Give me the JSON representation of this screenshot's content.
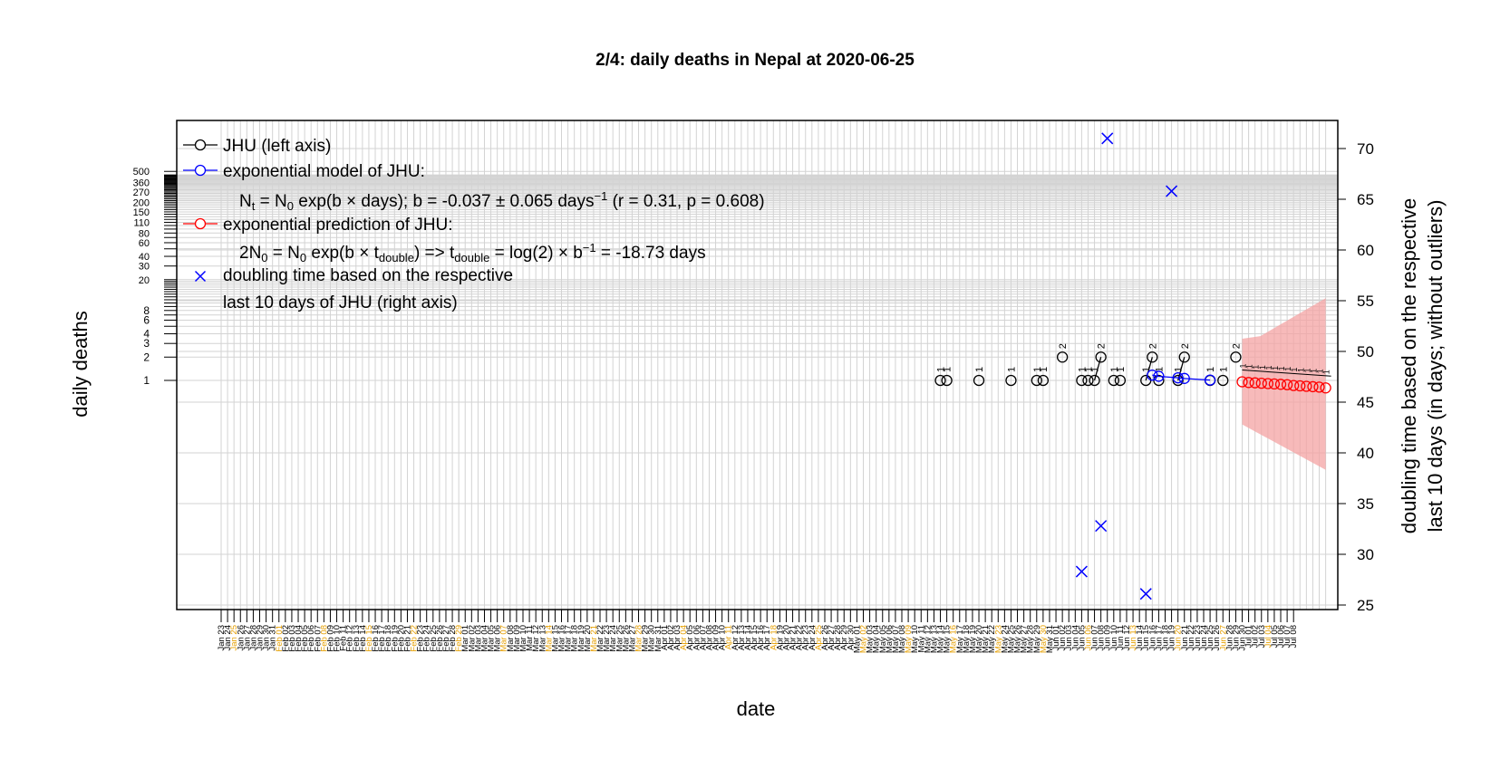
{
  "chart_data": {
    "type": "line",
    "title": "2/4: daily deaths in Nepal at 2020-06-25",
    "xlabel": "date",
    "ylabel": "daily deaths",
    "ylabel_right_line1": "doubling time based on the respective",
    "ylabel_right_line2": "last 10 days (in days; without outliers)",
    "y_left_scale": "log",
    "y_left_ticks": [
      1,
      2,
      3,
      4,
      6,
      8,
      20,
      30,
      40,
      60,
      80,
      110,
      150,
      200,
      270,
      360,
      500
    ],
    "y_left_minor_ticks": [
      5,
      7,
      9,
      10,
      11,
      12,
      13,
      14,
      15,
      16,
      17,
      18,
      19,
      50,
      70,
      90,
      100,
      120,
      130,
      140,
      160,
      170,
      180,
      190,
      210,
      220,
      230,
      240,
      250,
      260,
      280,
      290,
      300,
      310,
      320,
      330,
      340,
      350,
      370,
      380,
      390,
      400,
      410,
      420,
      430,
      440,
      450
    ],
    "y_right_ticks": [
      25,
      30,
      35,
      40,
      45,
      50,
      55,
      60,
      65,
      70
    ],
    "y_right_lim": [
      24.5,
      72.5
    ],
    "x_start": "2020-01-23",
    "x_end": "2020-07-08",
    "x_label_style": "Mon DD",
    "x_highlight_color": "#e69f00",
    "x_highlight_labels": [
      "Jan 25",
      "Feb 01",
      "Feb 08",
      "Feb 15",
      "Feb 22",
      "Feb 29",
      "Mar 07",
      "Mar 14",
      "Mar 21",
      "Mar 28",
      "Apr 04",
      "Apr 11",
      "Apr 18",
      "Apr 25",
      "May 02",
      "May 09",
      "May 16",
      "May 23",
      "May 30",
      "Jun 06",
      "Jun 13",
      "Jun 20",
      "Jun 27",
      "Jul 04"
    ],
    "grid": true,
    "legend_position": "top-left",
    "legend": {
      "jhu": "JHU (left axis)",
      "model": "exponential model of JHU:",
      "model_eq_a": "N",
      "model_eq_a_sub": "t",
      "model_eq_b": " = N",
      "model_eq_b_sub": "0",
      "model_eq_c": " exp(b × days); b = -0.037 ± 0.065 days",
      "model_eq_c_sup": "−1",
      "model_eq_d": " (r = 0.31, p = 0.608)",
      "prediction": "exponential prediction of JHU:",
      "pred_eq_a": "2N",
      "pred_eq_a_sub": "0",
      "pred_eq_b": " = N",
      "pred_eq_b_sub": "0",
      "pred_eq_c": " exp(b × t",
      "pred_eq_c_sub": "double",
      "pred_eq_d": ") => t",
      "pred_eq_d_sub": "double",
      "pred_eq_e": " = log(2) × b",
      "pred_eq_e_sup": "−1",
      "pred_eq_f": " = -18.73 days",
      "doubling_line1": "doubling time based on the respective",
      "doubling_line2": "last 10 days of JHU (right axis)"
    },
    "colors": {
      "jhu": "#000000",
      "model": "#0000ff",
      "prediction": "#ff0000",
      "band": "#f4a3a3",
      "doubling": "#0000ff",
      "grid": "#d3d3d3"
    },
    "series": [
      {
        "name": "JHU (left axis)",
        "axis": "left",
        "points": [
          {
            "x": "2020-05-14",
            "y": 1,
            "label": "1"
          },
          {
            "x": "2020-05-15",
            "y": 1,
            "label": "1"
          },
          {
            "x": "2020-05-20",
            "y": 1,
            "label": "1"
          },
          {
            "x": "2020-05-25",
            "y": 1,
            "label": "1"
          },
          {
            "x": "2020-05-29",
            "y": 1,
            "label": "1"
          },
          {
            "x": "2020-05-30",
            "y": 1,
            "label": "1"
          },
          {
            "x": "2020-06-02",
            "y": 2,
            "label": "2"
          },
          {
            "x": "2020-06-05",
            "y": 1,
            "label": "1"
          },
          {
            "x": "2020-06-06",
            "y": 1,
            "label": "1"
          },
          {
            "x": "2020-06-07",
            "y": 1,
            "label": "1"
          },
          {
            "x": "2020-06-08",
            "y": 2,
            "label": "2"
          },
          {
            "x": "2020-06-10",
            "y": 1,
            "label": "1"
          },
          {
            "x": "2020-06-11",
            "y": 1,
            "label": "1"
          },
          {
            "x": "2020-06-15",
            "y": 1,
            "label": "1"
          },
          {
            "x": "2020-06-16",
            "y": 2,
            "label": "2"
          },
          {
            "x": "2020-06-17",
            "y": 1,
            "label": "1"
          },
          {
            "x": "2020-06-20",
            "y": 1,
            "label": "1"
          },
          {
            "x": "2020-06-21",
            "y": 2,
            "label": "2"
          },
          {
            "x": "2020-06-25",
            "y": 1,
            "label": "1"
          },
          {
            "x": "2020-06-27",
            "y": 1,
            "label": "1"
          },
          {
            "x": "2020-06-29",
            "y": 2,
            "label": "2"
          }
        ],
        "connected_segments": [
          [
            {
              "x": "2020-06-07",
              "y": 1
            },
            {
              "x": "2020-06-08",
              "y": 2
            }
          ],
          [
            {
              "x": "2020-06-15",
              "y": 1
            },
            {
              "x": "2020-06-16",
              "y": 2
            }
          ],
          [
            {
              "x": "2020-06-20",
              "y": 1
            },
            {
              "x": "2020-06-21",
              "y": 2
            }
          ]
        ]
      },
      {
        "name": "exponential model of JHU:",
        "axis": "left",
        "values": [
          {
            "x": "2020-06-16",
            "y": 1.17
          },
          {
            "x": "2020-06-17",
            "y": 1.13
          },
          {
            "x": "2020-06-20",
            "y": 1.08
          },
          {
            "x": "2020-06-21",
            "y": 1.06
          },
          {
            "x": "2020-06-25",
            "y": 1.01
          }
        ]
      },
      {
        "name": "exponential prediction of JHU:",
        "axis": "left",
        "values": [
          {
            "x": "2020-06-30",
            "y": 0.96
          },
          {
            "x": "2020-07-01",
            "y": 0.94
          },
          {
            "x": "2020-07-02",
            "y": 0.93
          },
          {
            "x": "2020-07-03",
            "y": 0.92
          },
          {
            "x": "2020-07-04",
            "y": 0.91
          },
          {
            "x": "2020-07-05",
            "y": 0.9
          },
          {
            "x": "2020-07-06",
            "y": 0.89
          },
          {
            "x": "2020-07-07",
            "y": 0.88
          },
          {
            "x": "2020-07-08",
            "y": 0.86
          },
          {
            "x": "2020-07-09",
            "y": 0.85
          },
          {
            "x": "2020-07-10",
            "y": 0.84
          },
          {
            "x": "2020-07-11",
            "y": 0.83
          },
          {
            "x": "2020-07-12",
            "y": 0.82
          },
          {
            "x": "2020-07-13",
            "y": 0.8
          }
        ],
        "band": [
          {
            "x": "2020-06-30",
            "lo": 0.27,
            "hi": 3.45
          },
          {
            "x": "2020-07-13",
            "lo": 0.07,
            "hi": 11.5
          }
        ],
        "prev_fit_labels": "1"
      },
      {
        "name": "doubling time based on the respective",
        "axis": "right",
        "marker": "x",
        "values": [
          {
            "x": "2020-06-05",
            "y": 28.3
          },
          {
            "x": "2020-06-08",
            "y": 32.8
          },
          {
            "x": "2020-06-09",
            "y": 71.0
          },
          {
            "x": "2020-06-15",
            "y": 26.1
          },
          {
            "x": "2020-06-19",
            "y": 65.8
          }
        ]
      }
    ]
  }
}
